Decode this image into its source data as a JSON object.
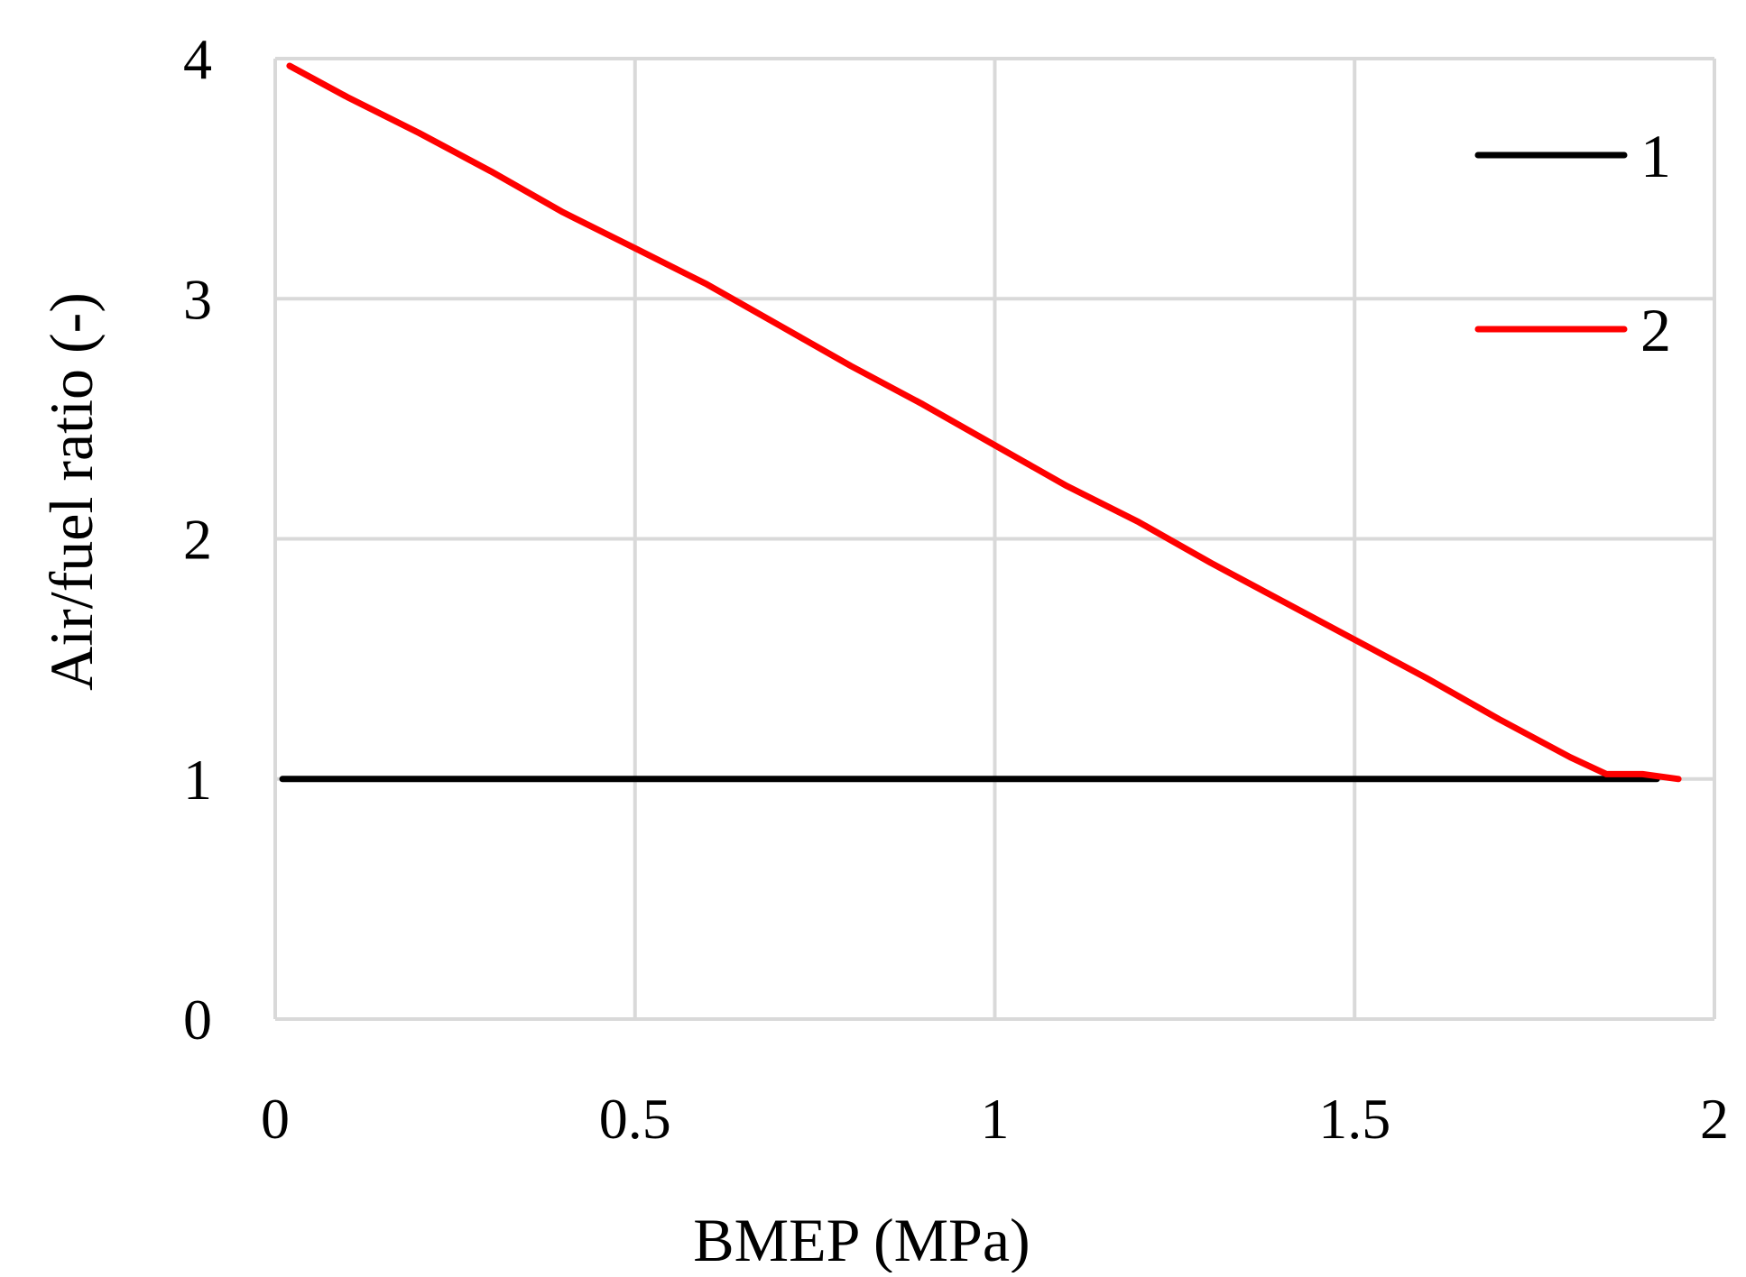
{
  "chart_data": {
    "type": "line",
    "title": "",
    "xlabel": "BMEP (MPa)",
    "ylabel": "Air/fuel ratio (-)",
    "xlim": [
      0,
      2
    ],
    "ylim": [
      0,
      4
    ],
    "x_ticks": [
      "0",
      "0.5",
      "1",
      "1.5",
      "2"
    ],
    "y_ticks": [
      "0",
      "1",
      "2",
      "3",
      "4"
    ],
    "grid": true,
    "legend_position": "top-right",
    "series": [
      {
        "name": "1",
        "color": "#000000",
        "x": [
          0.01,
          1.92
        ],
        "y": [
          1.0,
          1.0
        ]
      },
      {
        "name": "2",
        "color": "#ff0000",
        "x": [
          0.02,
          0.1,
          0.2,
          0.3,
          0.4,
          0.5,
          0.6,
          0.7,
          0.8,
          0.9,
          1.0,
          1.1,
          1.2,
          1.3,
          1.4,
          1.5,
          1.6,
          1.7,
          1.8,
          1.85,
          1.9,
          1.95
        ],
        "y": [
          3.97,
          3.84,
          3.69,
          3.53,
          3.36,
          3.21,
          3.06,
          2.89,
          2.72,
          2.56,
          2.39,
          2.22,
          2.07,
          1.9,
          1.74,
          1.58,
          1.42,
          1.25,
          1.09,
          1.02,
          1.02,
          1.0
        ]
      }
    ]
  }
}
